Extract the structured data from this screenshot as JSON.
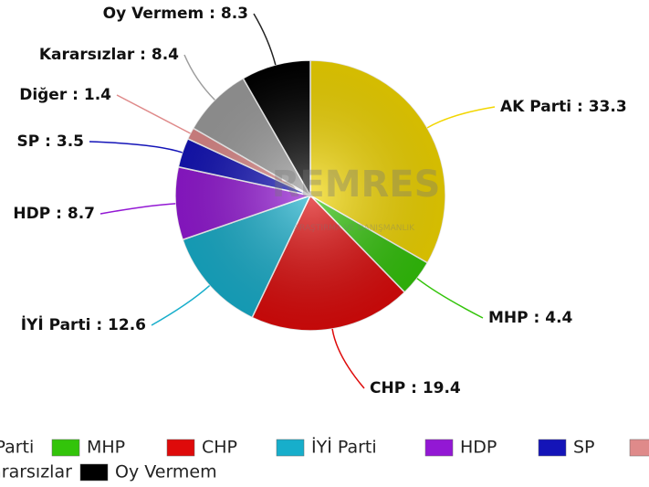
{
  "chart_data": {
    "type": "pie",
    "categories": [
      "AK Parti",
      "MHP",
      "CHP",
      "İYİ Parti",
      "HDP",
      "SP",
      "Diğer",
      "Kararsızlar",
      "Oy Vermem"
    ],
    "values": [
      33.3,
      4.4,
      19.4,
      12.6,
      8.7,
      3.5,
      1.4,
      8.4,
      8.3
    ],
    "colors": [
      "#f2d600",
      "#33c40a",
      "#de0a0a",
      "#17aecb",
      "#9318d4",
      "#1414b8",
      "#df8a8a",
      "#9d9d9d",
      "#000000"
    ],
    "label_separator": " : ",
    "watermark": "REMRES",
    "watermark_subtitle": "ARAŞTIRMA VE DANIŞMANLIK",
    "legend": "bottom"
  }
}
